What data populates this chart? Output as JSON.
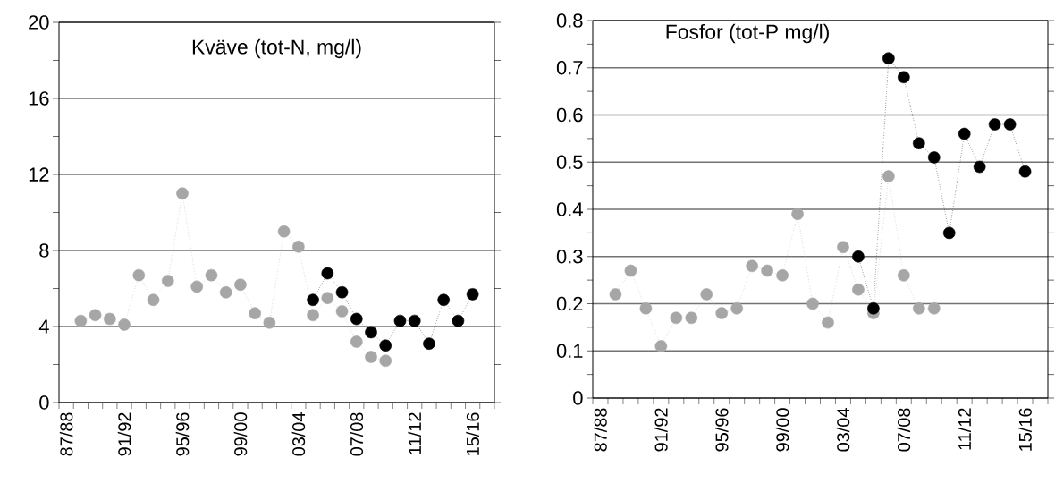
{
  "chart_data": [
    {
      "type": "line",
      "title": "Kväve (tot-N, mg/l)",
      "categories": [
        "87/88",
        null,
        null,
        null,
        "91/92",
        null,
        null,
        null,
        "95/96",
        null,
        null,
        null,
        "99/00",
        null,
        null,
        null,
        "03/04",
        null,
        null,
        null,
        "07/08",
        null,
        null,
        null,
        "11/12",
        null,
        null,
        null,
        "15/16",
        null
      ],
      "series": [
        {
          "color": "#a6a6a6",
          "values": [
            null,
            4.3,
            4.6,
            4.4,
            4.1,
            6.7,
            5.4,
            6.4,
            11.0,
            6.1,
            6.7,
            5.8,
            6.2,
            4.7,
            4.2,
            9.0,
            8.2,
            4.6,
            5.5,
            4.8,
            3.2,
            2.4,
            2.2,
            null,
            null,
            null,
            null,
            null,
            null,
            null
          ]
        },
        {
          "color": "#000000",
          "values": [
            null,
            null,
            null,
            null,
            null,
            null,
            null,
            null,
            null,
            null,
            null,
            null,
            null,
            null,
            null,
            null,
            null,
            5.4,
            6.8,
            5.8,
            4.4,
            3.7,
            3.0,
            4.3,
            4.3,
            3.1,
            5.4,
            4.3,
            5.7,
            null
          ]
        }
      ],
      "ylim": [
        0,
        20
      ],
      "yticks": [
        0,
        {
          "value": 2,
          "label": null
        },
        4,
        {
          "value": 6,
          "label": null
        },
        8,
        {
          "value": 10,
          "label": null
        },
        12,
        {
          "value": 14,
          "label": null
        },
        16,
        {
          "value": 18,
          "label": null
        },
        20
      ],
      "grid": "y",
      "marker": "circle",
      "line_style": "dotted"
    },
    {
      "type": "line",
      "title": "Fosfor (tot-P mg/l)",
      "categories": [
        "87/88",
        null,
        null,
        null,
        "91/92",
        null,
        null,
        null,
        "95/96",
        null,
        null,
        null,
        "99/00",
        null,
        null,
        null,
        "03/04",
        null,
        null,
        null,
        "07/08",
        null,
        null,
        null,
        "11/12",
        null,
        null,
        null,
        "15/16",
        null
      ],
      "series": [
        {
          "color": "#a6a6a6",
          "values": [
            null,
            0.22,
            0.27,
            0.19,
            0.11,
            0.17,
            0.17,
            0.22,
            0.18,
            0.19,
            0.28,
            0.27,
            0.26,
            0.39,
            0.2,
            0.16,
            0.32,
            0.23,
            0.18,
            0.47,
            0.26,
            0.19,
            0.19,
            null,
            null,
            null,
            null,
            null,
            null,
            null
          ]
        },
        {
          "color": "#000000",
          "values": [
            null,
            null,
            null,
            null,
            null,
            null,
            null,
            null,
            null,
            null,
            null,
            null,
            null,
            null,
            null,
            null,
            null,
            0.3,
            0.19,
            0.72,
            0.68,
            0.54,
            0.51,
            0.35,
            0.56,
            0.49,
            0.58,
            0.58,
            0.48,
            null
          ]
        }
      ],
      "ylim": [
        0,
        0.8
      ],
      "yticks": [
        0,
        {
          "value": 0.05,
          "label": null
        },
        0.1,
        {
          "value": 0.15,
          "label": null
        },
        0.2,
        {
          "value": 0.25,
          "label": null
        },
        0.3,
        {
          "value": 0.35,
          "label": null
        },
        0.4,
        {
          "value": 0.45,
          "label": null
        },
        0.5,
        {
          "value": 0.55,
          "label": null
        },
        0.6,
        {
          "value": 0.65,
          "label": null
        },
        0.7,
        {
          "value": 0.75,
          "label": null
        },
        0.8
      ],
      "grid": "y",
      "marker": "circle",
      "line_style": "dotted"
    }
  ]
}
